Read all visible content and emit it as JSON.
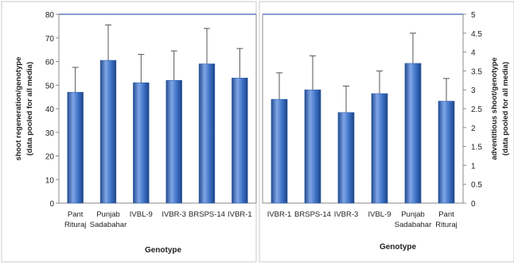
{
  "chart_data": [
    {
      "type": "bar",
      "ylabel": "shoot regeneration/genotype",
      "ylabel_sub": "(data pooled for all media)",
      "xlabel": "Genotype",
      "ylim": [
        0,
        80
      ],
      "yticks": [
        0,
        10,
        20,
        30,
        40,
        50,
        60,
        70,
        80
      ],
      "y_axis_side": "left",
      "categories": [
        [
          "Pant",
          "Rituraj"
        ],
        [
          "Punjab",
          "Sadabahar"
        ],
        [
          "IVBL-9"
        ],
        [
          "IVBR-3"
        ],
        [
          "BRSPS-14"
        ],
        [
          "IVBR-1"
        ]
      ],
      "values": [
        47,
        60.5,
        51,
        52,
        59,
        53
      ],
      "error": [
        10.5,
        15,
        12,
        12.5,
        15,
        12.5
      ],
      "colors": {
        "bar": "#3a6fc4",
        "bar_light": "#7fa6e6",
        "bar_dark": "#234b8f",
        "frame": "#5b7fbf"
      }
    },
    {
      "type": "bar",
      "ylabel": "adventitious shoot/genotype",
      "ylabel_sub": "(data pooled for all media)",
      "xlabel": "Genotype",
      "ylim": [
        0,
        5
      ],
      "yticks": [
        0,
        0.5,
        1,
        1.5,
        2,
        2.5,
        3,
        3.5,
        4,
        4.5,
        5
      ],
      "y_axis_side": "right",
      "categories": [
        [
          "IVBR-1"
        ],
        [
          "BRSPS-14"
        ],
        [
          "IVBR-3"
        ],
        [
          "IVBL-9"
        ],
        [
          "Punjab",
          "Sadabahar"
        ],
        [
          "Pant",
          "Rituraj"
        ]
      ],
      "values": [
        2.75,
        3.0,
        2.4,
        2.9,
        3.7,
        2.7
      ],
      "error": [
        0.7,
        0.9,
        0.7,
        0.6,
        0.8,
        0.6
      ],
      "colors": {
        "bar": "#3a6fc4",
        "bar_light": "#7fa6e6",
        "bar_dark": "#234b8f",
        "frame": "#5b7fbf"
      }
    }
  ]
}
